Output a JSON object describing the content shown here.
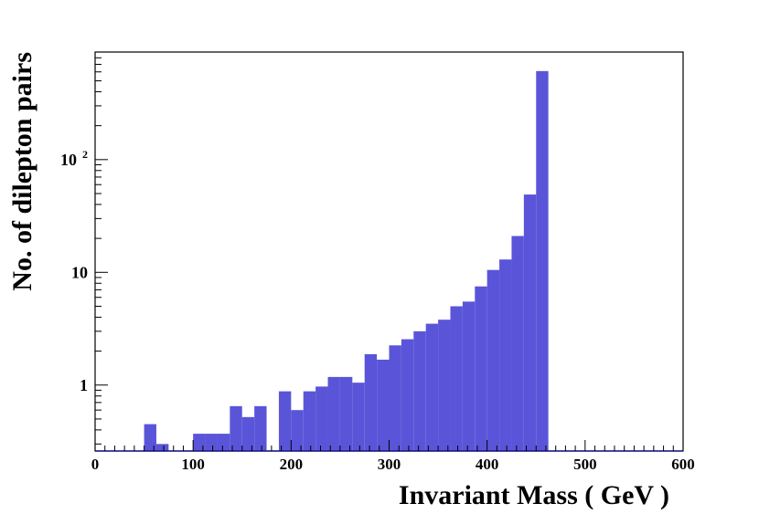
{
  "chart_data": {
    "type": "bar",
    "xlabel": "Invariant Mass  ( GeV )",
    "ylabel": "No. of dilepton pairs",
    "xlim": [
      0,
      600
    ],
    "ylim": [
      0.26,
      900
    ],
    "yscale": "log",
    "bin_width": 12.5,
    "bar_color": "#5a55d8",
    "grid": false,
    "x_ticks": [
      {
        "value": 0,
        "label": "0"
      },
      {
        "value": 100,
        "label": "100"
      },
      {
        "value": 200,
        "label": "200"
      },
      {
        "value": 300,
        "label": "300"
      },
      {
        "value": 400,
        "label": "400"
      },
      {
        "value": 500,
        "label": "500"
      },
      {
        "value": 600,
        "label": "600"
      }
    ],
    "y_ticks": [
      {
        "value": 1,
        "label": "1"
      },
      {
        "value": 10,
        "label": "10"
      },
      {
        "value": 100,
        "label": "10",
        "exp": "2"
      }
    ],
    "bins": [
      {
        "x": 50,
        "y": 0.45
      },
      {
        "x": 62.5,
        "y": 0.3
      },
      {
        "x": 100,
        "y": 0.37
      },
      {
        "x": 112.5,
        "y": 0.37
      },
      {
        "x": 125,
        "y": 0.37
      },
      {
        "x": 137.5,
        "y": 0.65
      },
      {
        "x": 150,
        "y": 0.52
      },
      {
        "x": 162.5,
        "y": 0.65
      },
      {
        "x": 187.5,
        "y": 0.88
      },
      {
        "x": 200,
        "y": 0.6
      },
      {
        "x": 212.5,
        "y": 0.88
      },
      {
        "x": 225,
        "y": 0.97
      },
      {
        "x": 237.5,
        "y": 1.18
      },
      {
        "x": 250,
        "y": 1.18
      },
      {
        "x": 262.5,
        "y": 1.05
      },
      {
        "x": 275,
        "y": 1.88
      },
      {
        "x": 287.5,
        "y": 1.68
      },
      {
        "x": 300,
        "y": 2.25
      },
      {
        "x": 312.5,
        "y": 2.55
      },
      {
        "x": 325,
        "y": 3.0
      },
      {
        "x": 337.5,
        "y": 3.5
      },
      {
        "x": 350,
        "y": 3.8
      },
      {
        "x": 362.5,
        "y": 5.0
      },
      {
        "x": 375,
        "y": 5.5
      },
      {
        "x": 387.5,
        "y": 7.5
      },
      {
        "x": 400,
        "y": 10.5
      },
      {
        "x": 412.5,
        "y": 13.0
      },
      {
        "x": 425,
        "y": 21.0
      },
      {
        "x": 437.5,
        "y": 49.0
      },
      {
        "x": 450,
        "y": 610.0
      }
    ]
  }
}
